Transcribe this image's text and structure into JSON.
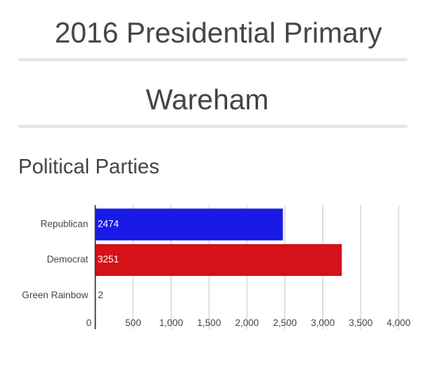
{
  "header": {
    "title": "2016 Presidential Primary",
    "subtitle": "Wareham",
    "section": "Political Parties"
  },
  "chart_data": {
    "type": "bar",
    "orientation": "horizontal",
    "categories": [
      "Republican",
      "Democrat",
      "Green Rainbow"
    ],
    "values": [
      2474,
      3251,
      2
    ],
    "colors": [
      "#1a1ae6",
      "#d41218",
      "#2a9a2a"
    ],
    "xlim": [
      0,
      4000
    ],
    "xticks": [
      0,
      500,
      {
        "value": 1000,
        "label": "1,000"
      },
      {
        "value": 1500,
        "label": "1,500"
      },
      {
        "value": 2000,
        "label": "2,000"
      },
      {
        "value": 2500,
        "label": "2,500"
      },
      {
        "value": 3000,
        "label": "3,000"
      },
      {
        "value": 3500,
        "label": "3,500"
      },
      {
        "value": 4000,
        "label": "4,000"
      }
    ],
    "grid": true
  }
}
